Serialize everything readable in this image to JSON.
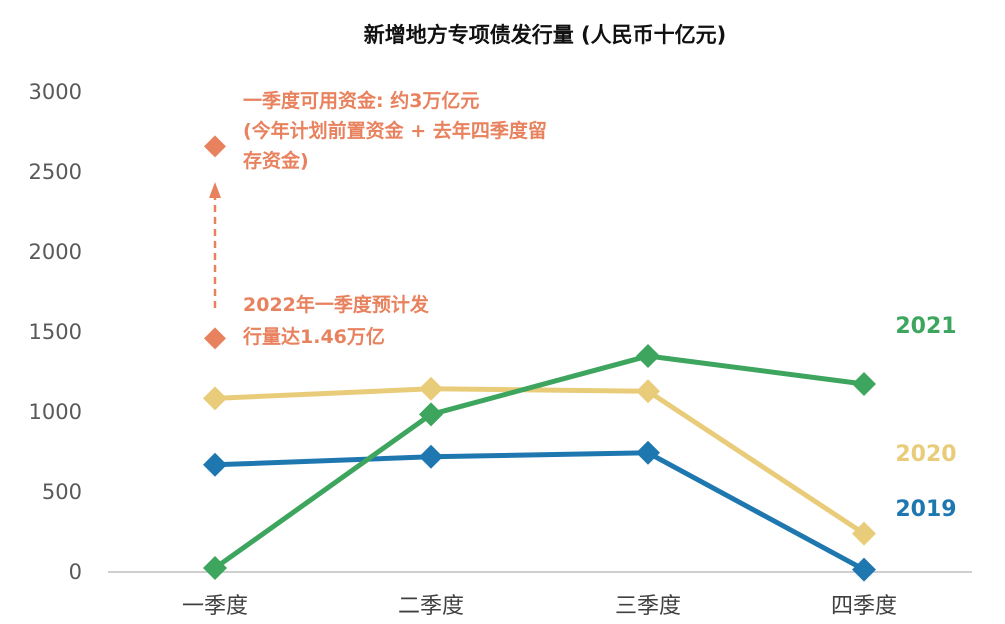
{
  "chart_data": {
    "type": "line",
    "title": "新增地方专项债发行量 (人民币十亿元)",
    "xlabel": "",
    "ylabel": "",
    "categories": [
      "一季度",
      "二季度",
      "三季度",
      "四季度"
    ],
    "ylim": [
      0,
      3000
    ],
    "yticks": [
      0,
      500,
      1000,
      1500,
      2000,
      2500,
      3000
    ],
    "grid": false,
    "series": [
      {
        "name": "2019",
        "color": "#1F77B0",
        "values": [
          670,
          720,
          745,
          15
        ]
      },
      {
        "name": "2020",
        "color": "#E9CC7A",
        "values": [
          1085,
          1145,
          1130,
          240
        ]
      },
      {
        "name": "2021",
        "color": "#3DA55D",
        "values": [
          25,
          985,
          1350,
          1175
        ]
      }
    ],
    "annotations": [
      {
        "lines": [
          "2022年一季度预计发",
          "行量达1.46万亿"
        ],
        "x": "一季度",
        "y": 1460,
        "color": "#E8825E"
      },
      {
        "lines": [
          "一季度可用资金: 约3万亿元",
          "(今年计划前置资金 + 去年四季度留",
          "存资金)"
        ],
        "x": "一季度",
        "y": 2660,
        "color": "#E8825E"
      }
    ]
  }
}
